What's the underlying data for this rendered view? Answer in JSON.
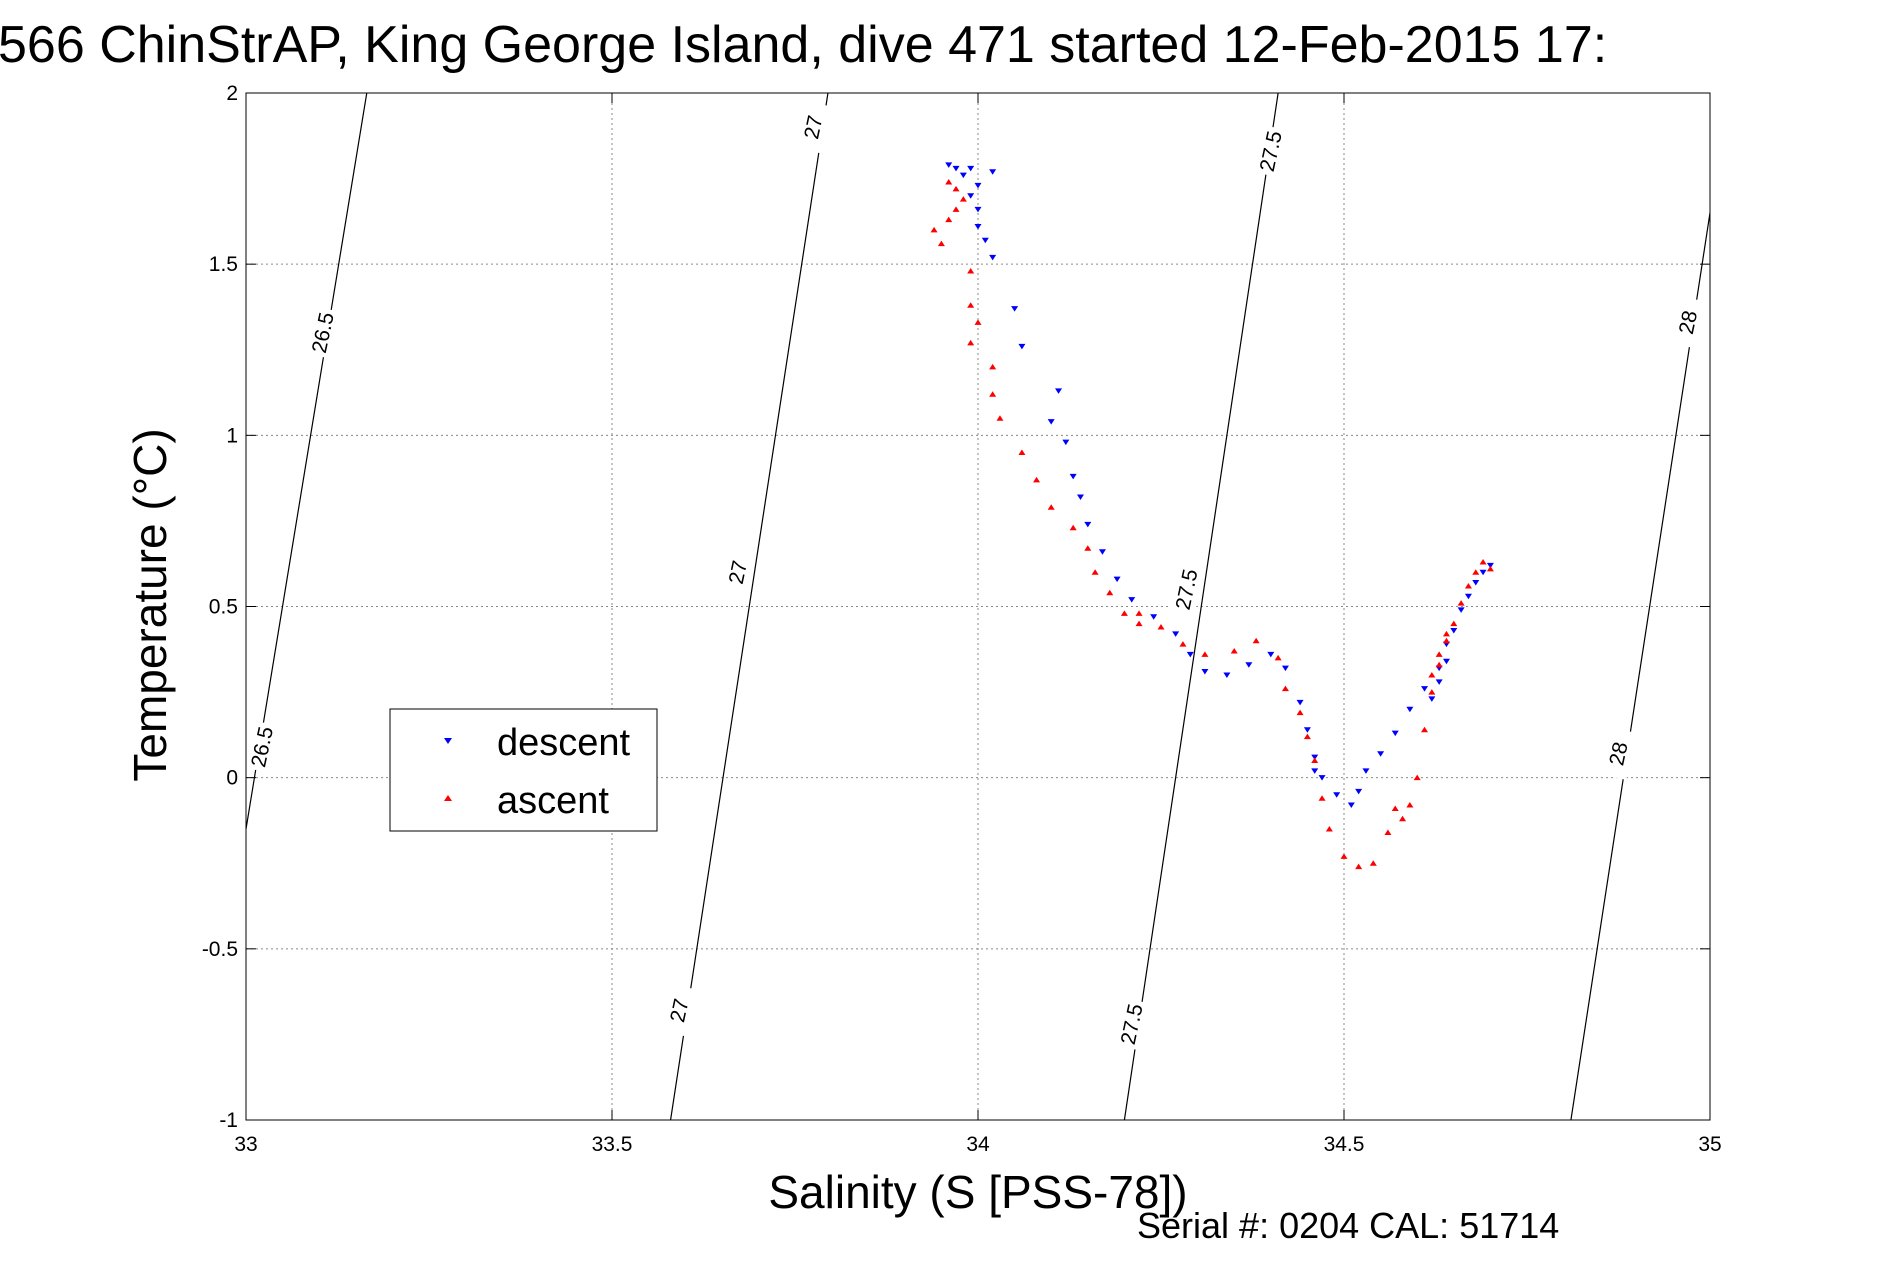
{
  "chart_data": {
    "type": "scatter",
    "title": "566 ChinStrAP, King George Island, dive 471 started 12-Feb-2015 17:",
    "xlabel": "Salinity (S [PSS-78])",
    "ylabel": "Temperature (°C)",
    "xlim": [
      33,
      35
    ],
    "ylim": [
      -1,
      2
    ],
    "x_ticks": [
      "33",
      "33.5",
      "34",
      "34.5",
      "35"
    ],
    "y_ticks": [
      "-1",
      "-0.5",
      "0",
      "0.5",
      "1",
      "1.5",
      "2"
    ],
    "grid": true,
    "legend_position": "center-left",
    "footer_text": "Serial #: 0204  CAL: 51714",
    "isopycnals": [
      {
        "label": "26.5",
        "points": [
          [
            33.0,
            -0.15
          ],
          [
            33.165,
            2.0
          ]
        ]
      },
      {
        "label": "27",
        "points": [
          [
            33.58,
            -1.0
          ],
          [
            33.795,
            2.0
          ]
        ]
      },
      {
        "label": "27.5",
        "points": [
          [
            34.2,
            -1.0
          ],
          [
            34.41,
            2.0
          ]
        ]
      },
      {
        "label": "28",
        "points": [
          [
            34.81,
            -1.0
          ],
          [
            35.0,
            1.65
          ]
        ]
      }
    ],
    "isopycnal_labels": [
      {
        "text": "26.5",
        "x": 33.105,
        "y": 1.3
      },
      {
        "text": "26.5",
        "x": 33.022,
        "y": 0.09
      },
      {
        "text": "27",
        "x": 33.775,
        "y": 1.9
      },
      {
        "text": "27",
        "x": 33.672,
        "y": 0.6
      },
      {
        "text": "27",
        "x": 33.592,
        "y": -0.68
      },
      {
        "text": "27.5",
        "x": 34.4,
        "y": 1.83
      },
      {
        "text": "27.5",
        "x": 34.285,
        "y": 0.55
      },
      {
        "text": "27.5",
        "x": 34.21,
        "y": -0.72
      },
      {
        "text": "28",
        "x": 34.97,
        "y": 1.33
      },
      {
        "text": "28",
        "x": 34.875,
        "y": 0.07
      }
    ],
    "series": [
      {
        "name": "descent",
        "color": "#0000ff",
        "marker": "triangle-down",
        "points": [
          [
            33.96,
            1.79
          ],
          [
            33.97,
            1.78
          ],
          [
            33.99,
            1.78
          ],
          [
            34.02,
            1.77
          ],
          [
            33.98,
            1.76
          ],
          [
            34.0,
            1.73
          ],
          [
            33.99,
            1.7
          ],
          [
            34.0,
            1.66
          ],
          [
            34.0,
            1.61
          ],
          [
            34.01,
            1.57
          ],
          [
            34.02,
            1.52
          ],
          [
            34.05,
            1.37
          ],
          [
            34.06,
            1.26
          ],
          [
            34.11,
            1.13
          ],
          [
            34.1,
            1.04
          ],
          [
            34.12,
            0.98
          ],
          [
            34.13,
            0.88
          ],
          [
            34.14,
            0.82
          ],
          [
            34.15,
            0.74
          ],
          [
            34.17,
            0.66
          ],
          [
            34.19,
            0.58
          ],
          [
            34.21,
            0.52
          ],
          [
            34.24,
            0.47
          ],
          [
            34.27,
            0.42
          ],
          [
            34.29,
            0.36
          ],
          [
            34.31,
            0.31
          ],
          [
            34.34,
            0.3
          ],
          [
            34.37,
            0.33
          ],
          [
            34.4,
            0.36
          ],
          [
            34.42,
            0.32
          ],
          [
            34.44,
            0.22
          ],
          [
            34.45,
            0.14
          ],
          [
            34.46,
            0.06
          ],
          [
            34.46,
            0.02
          ],
          [
            34.47,
            0.0
          ],
          [
            34.49,
            -0.05
          ],
          [
            34.51,
            -0.08
          ],
          [
            34.52,
            -0.04
          ],
          [
            34.53,
            0.02
          ],
          [
            34.55,
            0.07
          ],
          [
            34.57,
            0.13
          ],
          [
            34.59,
            0.2
          ],
          [
            34.61,
            0.26
          ],
          [
            34.63,
            0.32
          ],
          [
            34.64,
            0.39
          ],
          [
            34.65,
            0.43
          ],
          [
            34.66,
            0.49
          ],
          [
            34.67,
            0.53
          ],
          [
            34.68,
            0.57
          ],
          [
            34.69,
            0.6
          ],
          [
            34.7,
            0.62
          ],
          [
            34.62,
            0.23
          ],
          [
            34.63,
            0.28
          ],
          [
            34.64,
            0.34
          ]
        ]
      },
      {
        "name": "ascent",
        "color": "#ff0000",
        "marker": "triangle-up",
        "points": [
          [
            33.96,
            1.74
          ],
          [
            33.97,
            1.72
          ],
          [
            33.98,
            1.69
          ],
          [
            33.97,
            1.66
          ],
          [
            33.96,
            1.63
          ],
          [
            33.94,
            1.6
          ],
          [
            33.95,
            1.56
          ],
          [
            33.99,
            1.48
          ],
          [
            33.99,
            1.38
          ],
          [
            34.0,
            1.33
          ],
          [
            33.99,
            1.27
          ],
          [
            34.02,
            1.2
          ],
          [
            34.02,
            1.12
          ],
          [
            34.03,
            1.05
          ],
          [
            34.06,
            0.95
          ],
          [
            34.08,
            0.87
          ],
          [
            34.1,
            0.79
          ],
          [
            34.13,
            0.73
          ],
          [
            34.15,
            0.67
          ],
          [
            34.16,
            0.6
          ],
          [
            34.18,
            0.54
          ],
          [
            34.2,
            0.48
          ],
          [
            34.22,
            0.45
          ],
          [
            34.22,
            0.48
          ],
          [
            34.25,
            0.44
          ],
          [
            34.28,
            0.39
          ],
          [
            34.31,
            0.36
          ],
          [
            34.35,
            0.37
          ],
          [
            34.38,
            0.4
          ],
          [
            34.41,
            0.35
          ],
          [
            34.42,
            0.26
          ],
          [
            34.44,
            0.19
          ],
          [
            34.45,
            0.12
          ],
          [
            34.46,
            0.05
          ],
          [
            34.47,
            -0.06
          ],
          [
            34.48,
            -0.15
          ],
          [
            34.5,
            -0.23
          ],
          [
            34.52,
            -0.26
          ],
          [
            34.54,
            -0.25
          ],
          [
            34.56,
            -0.16
          ],
          [
            34.57,
            -0.09
          ],
          [
            34.59,
            -0.08
          ],
          [
            34.58,
            -0.12
          ],
          [
            34.6,
            0.0
          ],
          [
            34.61,
            0.14
          ],
          [
            34.62,
            0.25
          ],
          [
            34.63,
            0.33
          ],
          [
            34.64,
            0.4
          ],
          [
            34.65,
            0.45
          ],
          [
            34.66,
            0.51
          ],
          [
            34.67,
            0.56
          ],
          [
            34.68,
            0.6
          ],
          [
            34.69,
            0.63
          ],
          [
            34.7,
            0.61
          ],
          [
            34.63,
            0.36
          ],
          [
            34.64,
            0.42
          ],
          [
            34.62,
            0.3
          ]
        ]
      }
    ]
  }
}
